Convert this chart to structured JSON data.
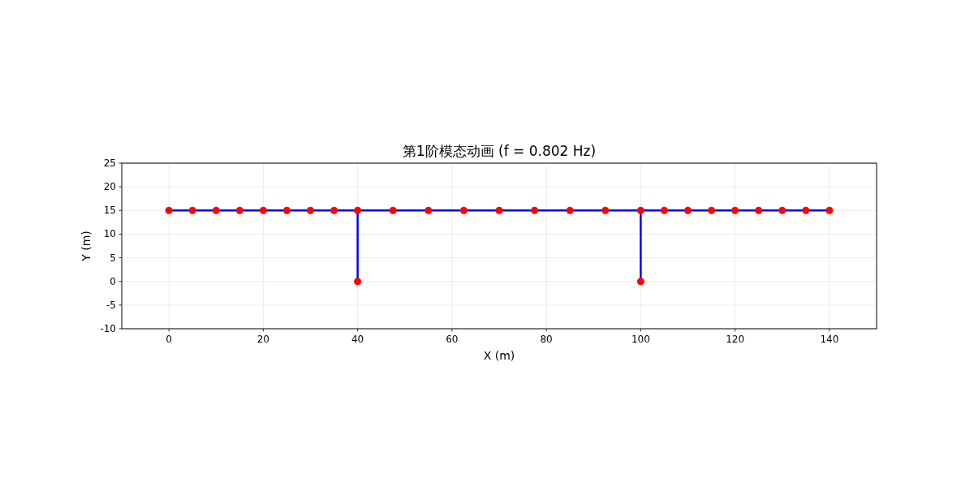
{
  "chart_data": {
    "type": "line",
    "title": "第1阶模态动画 (f = 0.802 Hz)",
    "xlabel": "X (m)",
    "ylabel": "Y (m)",
    "xlim": [
      -10,
      150
    ],
    "ylim": [
      -10,
      25
    ],
    "xticks": [
      0,
      20,
      40,
      60,
      80,
      100,
      120,
      140
    ],
    "yticks": [
      -10,
      -5,
      0,
      5,
      10,
      15,
      20,
      25
    ],
    "grid": true,
    "series": [
      {
        "type": "line",
        "color": "#0000ff",
        "marker": "none",
        "x": [
          0,
          140
        ],
        "values": [
          15,
          15
        ]
      },
      {
        "type": "line",
        "color": "#0000ff",
        "marker": "none",
        "x": [
          40,
          40
        ],
        "values": [
          15,
          0
        ]
      },
      {
        "type": "line",
        "color": "#0000ff",
        "marker": "none",
        "x": [
          100,
          100
        ],
        "values": [
          15,
          0
        ]
      },
      {
        "type": "scatter",
        "color": "#ff0000",
        "marker": "circle",
        "x": [
          0,
          5,
          10,
          15,
          20,
          25,
          30,
          35,
          40,
          47.5,
          55,
          62.5,
          70,
          77.5,
          85,
          92.5,
          100,
          105,
          110,
          115,
          120,
          125,
          130,
          135,
          140,
          40,
          100
        ],
        "values": [
          15,
          15,
          15,
          15,
          15,
          15,
          15,
          15,
          15,
          15,
          15,
          15,
          15,
          15,
          15,
          15,
          15,
          15,
          15,
          15,
          15,
          15,
          15,
          15,
          15,
          0,
          0
        ]
      }
    ]
  }
}
